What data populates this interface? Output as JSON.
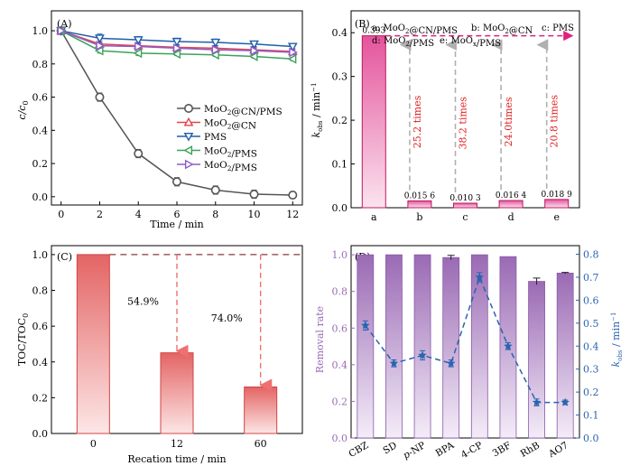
{
  "chart_data": [
    {
      "panel": "(A)",
      "type": "line",
      "xlabel": "Time / min",
      "ylabel": "c/c0",
      "xlim": [
        -0.5,
        12.5
      ],
      "ylim": [
        -0.05,
        1.12
      ],
      "xticks": [
        "0",
        "2",
        "4",
        "6",
        "8",
        "10",
        "12"
      ],
      "yticks": [
        "0.0",
        "0.2",
        "0.4",
        "0.6",
        "0.8",
        "1.0"
      ],
      "x": [
        0,
        2,
        4,
        6,
        8,
        10,
        12
      ],
      "legend_position": "center-right",
      "series": [
        {
          "name": "MoO2@CN/PMS",
          "marker": "circle",
          "color": "#555555",
          "values": [
            1.0,
            0.6,
            0.26,
            0.09,
            0.04,
            0.015,
            0.01
          ],
          "errors": [
            0.01,
            0.025,
            0.025,
            0.025,
            0.025,
            0.025,
            0.02
          ]
        },
        {
          "name": "MoO2@CN",
          "marker": "triangle-up",
          "color": "#e0454f",
          "values": [
            1.0,
            0.92,
            0.91,
            0.9,
            0.895,
            0.885,
            0.875
          ],
          "errors": [
            0.01,
            0.02,
            0.02,
            0.015,
            0.015,
            0.015,
            0.015
          ]
        },
        {
          "name": "PMS",
          "marker": "triangle-down",
          "color": "#1f5fa8",
          "values": [
            1.0,
            0.955,
            0.945,
            0.935,
            0.93,
            0.92,
            0.905
          ],
          "errors": [
            0.01,
            0.025,
            0.02,
            0.02,
            0.02,
            0.015,
            0.015
          ]
        },
        {
          "name": "MoO2/PMS",
          "marker": "triangle-left",
          "color": "#3aa35a",
          "values": [
            1.0,
            0.88,
            0.865,
            0.86,
            0.855,
            0.845,
            0.83
          ],
          "errors": [
            0.01,
            0.015,
            0.015,
            0.01,
            0.01,
            0.01,
            0.01
          ]
        },
        {
          "name": "MoO2/PMS",
          "marker": "triangle-right",
          "color": "#8e5cc7",
          "values": [
            1.0,
            0.91,
            0.905,
            0.895,
            0.885,
            0.88,
            0.87
          ],
          "errors": [
            0.01,
            0.015,
            0.015,
            0.015,
            0.015,
            0.015,
            0.015
          ]
        }
      ]
    },
    {
      "panel": "(B)",
      "type": "bar",
      "ylabel": "kobs / min-1",
      "ylim": [
        0,
        0.45
      ],
      "yticks": [
        "0.0",
        "0.1",
        "0.2",
        "0.3",
        "0.4"
      ],
      "categories": [
        "a",
        "b",
        "c",
        "d",
        "e"
      ],
      "values": [
        0.393,
        0.0156,
        0.0103,
        0.0164,
        0.0189
      ],
      "value_labels": [
        "0.393",
        "0.015 6",
        "0.010 3",
        "0.016 4",
        "0.018 9"
      ],
      "legend_lines": [
        "a: MoO2@CN/PMS",
        "b: MoO2@CN",
        "c: PMS",
        "d: MoO2/PMS",
        "e: MoOx/PMS"
      ],
      "annotations": [
        "25.2 times",
        "38.2 times",
        "24.0times",
        "20.8 times"
      ],
      "bar_color": "#e4549c",
      "arrow_color": "#e0207e"
    },
    {
      "panel": "(C)",
      "type": "bar",
      "xlabel": "Recation time / min",
      "ylabel": "TOC/TOC0",
      "ylim": [
        0,
        1.05
      ],
      "yticks": [
        "0.0",
        "0.2",
        "0.4",
        "0.6",
        "0.8",
        "1.0"
      ],
      "categories": [
        "0",
        "12",
        "60"
      ],
      "values": [
        1.0,
        0.451,
        0.26
      ],
      "annotations": [
        "54.9%",
        "74.0%"
      ],
      "bar_color": "#e05a5a"
    },
    {
      "panel": "(D)",
      "type": "bar",
      "ylabel": "Removal rate",
      "y2label": "kobs / min-1",
      "ylim": [
        0,
        1.05
      ],
      "y2lim": [
        0,
        0.8375
      ],
      "yticks": [
        "0.0",
        "0.2",
        "0.4",
        "0.6",
        "0.8",
        "1.0"
      ],
      "y2ticks": [
        "0.0",
        "0.1",
        "0.2",
        "0.3",
        "0.4",
        "0.5",
        "0.6",
        "0.7",
        "0.8"
      ],
      "categories": [
        "CBZ",
        "SD",
        "p-NP",
        "BPA",
        "4-CP",
        "3BF",
        "RhB",
        "AO7"
      ],
      "values": [
        1.0,
        1.0,
        1.0,
        0.985,
        1.0,
        0.99,
        0.855,
        0.9
      ],
      "errors": [
        0.0,
        0.0,
        0.0,
        0.012,
        0.0,
        0.0,
        0.018,
        0.004
      ],
      "kobs": [
        0.49,
        0.325,
        0.36,
        0.325,
        0.7,
        0.4,
        0.155,
        0.155
      ],
      "kobs_errors": [
        0.02,
        0.015,
        0.02,
        0.015,
        0.02,
        0.015,
        0.015,
        0.01
      ],
      "bar_color": "#9b6bb5",
      "line_color": "#2a64b0",
      "left_axis_color": "#9b6bb5",
      "right_axis_color": "#2a64b0"
    }
  ]
}
